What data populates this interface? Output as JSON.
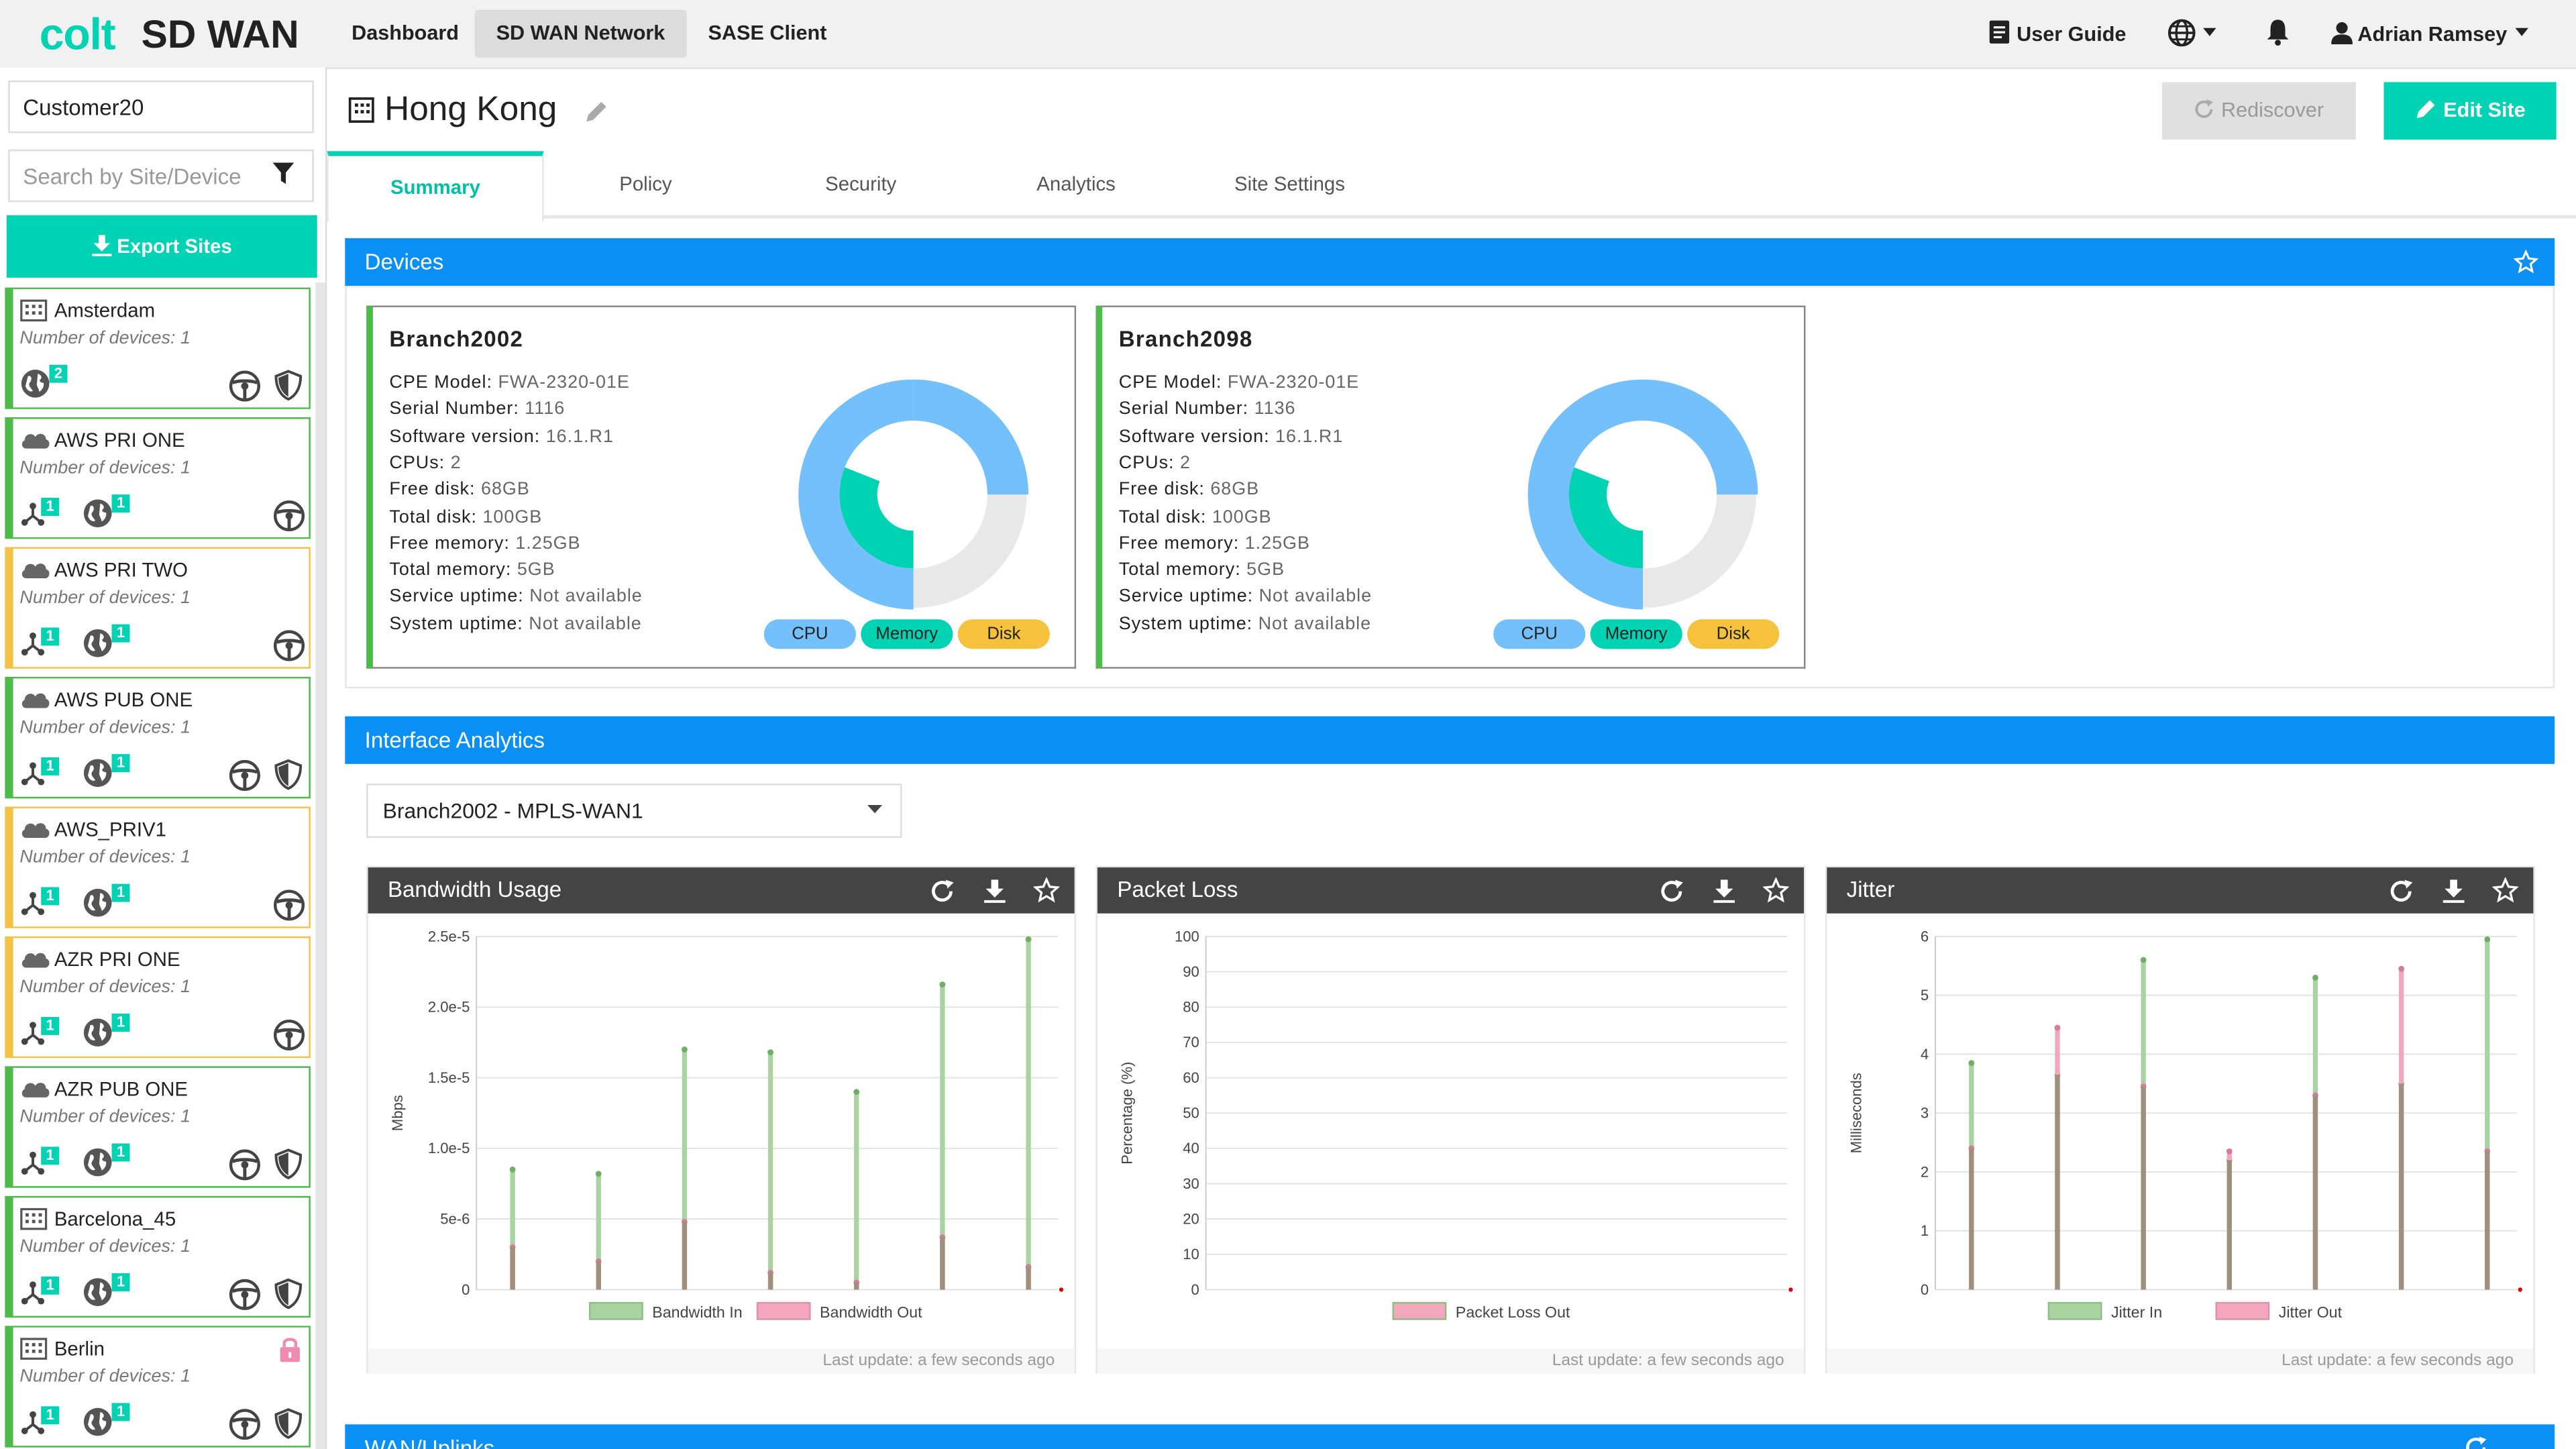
{
  "header": {
    "logo_brand": "colt",
    "logo_product": "SD WAN",
    "nav": [
      "Dashboard",
      "SD WAN Network",
      "SASE Client"
    ],
    "user_guide": "User Guide",
    "user_name": "Adrian Ramsey"
  },
  "sidebar": {
    "customer": "Customer20",
    "search_placeholder": "Search by Site/Device",
    "export_label": "Export Sites",
    "sites": [
      {
        "name": "Amsterdam",
        "devices": "Number of devices: 1",
        "type": "building",
        "status": "green",
        "badge": "2"
      },
      {
        "name": "AWS PRI ONE",
        "devices": "Number of devices: 1",
        "type": "cloud",
        "status": "green",
        "badge": "1"
      },
      {
        "name": "AWS PRI TWO",
        "devices": "Number of devices: 1",
        "type": "cloud",
        "status": "yellow",
        "badge": "1"
      },
      {
        "name": "AWS PUB ONE",
        "devices": "Number of devices: 1",
        "type": "cloud",
        "status": "green",
        "badge": "1"
      },
      {
        "name": "AWS_PRIV1",
        "devices": "Number of devices: 1",
        "type": "cloud",
        "status": "yellow",
        "badge": "1"
      },
      {
        "name": "AZR PRI ONE",
        "devices": "Number of devices: 1",
        "type": "cloud",
        "status": "yellow",
        "badge": "1"
      },
      {
        "name": "AZR PUB ONE",
        "devices": "Number of devices: 1",
        "type": "cloud",
        "status": "green",
        "badge": "1"
      },
      {
        "name": "Barcelona_45",
        "devices": "Number of devices: 1",
        "type": "building",
        "status": "green",
        "badge": "1"
      },
      {
        "name": "Berlin",
        "devices": "Number of devices: 1",
        "type": "building",
        "status": "green",
        "badge": "1"
      }
    ]
  },
  "main": {
    "site_title": "Hong Kong",
    "rediscover_label": "Rediscover",
    "edit_label": "Edit Site",
    "tabs": [
      "Summary",
      "Policy",
      "Security",
      "Analytics",
      "Site Settings"
    ],
    "devices_header": "Devices",
    "devices": [
      {
        "name": "Branch2002",
        "cpe_model": "FWA-2320-01E",
        "serial": "1116",
        "software": "16.1.R1",
        "cpus": "2",
        "free_disk": "68GB",
        "total_disk": "100GB",
        "free_memory": "1.25GB",
        "total_memory": "5GB",
        "service_uptime": "Not available",
        "system_uptime": "Not available"
      },
      {
        "name": "Branch2098",
        "cpe_model": "FWA-2320-01E",
        "serial": "1136",
        "software": "16.1.R1",
        "cpus": "2",
        "free_disk": "68GB",
        "total_disk": "100GB",
        "free_memory": "1.25GB",
        "total_memory": "5GB",
        "service_uptime": "Not available",
        "system_uptime": "Not available"
      }
    ],
    "device_labels": {
      "cpe_model": "CPE Model:",
      "serial": "Serial Number:",
      "software": "Software version:",
      "cpus": "CPUs:",
      "free_disk": "Free disk:",
      "total_disk": "Total disk:",
      "free_memory": "Free memory:",
      "total_memory": "Total memory:",
      "service_uptime": "Service uptime:",
      "system_uptime": "System uptime:"
    },
    "gauge_labels": [
      "CPU",
      "Memory",
      "Disk"
    ],
    "gauge_values": {
      "cpu": 0.5,
      "memory": 0.25,
      "disk": 0.32
    },
    "analytics_header": "Interface Analytics",
    "interface_select": "Branch2002 - MPLS-WAN1",
    "last_update": "Last update: a few seconds ago",
    "wan_header": "WAN/Uplinks"
  },
  "colors": {
    "accent": "#00d2b4",
    "section_blue": "#0a8ff5",
    "online_green": "#4cbb4a",
    "warning_yellow": "#f3c244",
    "cpu_blue": "#74c0fc",
    "disk_yellow": "#f6c23e"
  },
  "chart_data": [
    {
      "type": "line",
      "title": "Bandwidth Usage",
      "ylabel": "Mbps",
      "ylim": [
        0,
        2.5e-05
      ],
      "yticks": [
        "0",
        "5e-6",
        "1.0e-5",
        "1.5e-5",
        "2.0e-5",
        "2.5e-5"
      ],
      "series": [
        {
          "name": "Bandwidth In",
          "color": "#a9d3a1",
          "values": [
            8.5e-06,
            8.2e-06,
            1.7e-05,
            1.68e-05,
            1.4e-05,
            2.16e-05,
            2.48e-05
          ]
        },
        {
          "name": "Bandwidth Out",
          "color": "#f2a7bd",
          "values": [
            3e-06,
            2e-06,
            4.8e-06,
            1.2e-06,
            5e-07,
            3.7e-06,
            1.6e-06
          ]
        }
      ]
    },
    {
      "type": "line",
      "title": "Packet Loss",
      "ylabel": "Percentage (%)",
      "ylim": [
        0,
        100
      ],
      "yticks": [
        "0",
        "10",
        "20",
        "30",
        "40",
        "50",
        "60",
        "70",
        "80",
        "90",
        "100"
      ],
      "series": [
        {
          "name": "Packet Loss Out",
          "color": "#f2a7bd",
          "values": []
        }
      ]
    },
    {
      "type": "line",
      "title": "Jitter",
      "ylabel": "Milliseconds",
      "ylim": [
        0,
        6
      ],
      "yticks": [
        "0",
        "1",
        "2",
        "3",
        "4",
        "5",
        "6"
      ],
      "series": [
        {
          "name": "Jitter In",
          "color": "#a9d3a1",
          "values": [
            3.85,
            3.65,
            5.6,
            2.2,
            5.3,
            3.5,
            5.95
          ]
        },
        {
          "name": "Jitter Out",
          "color": "#f2a7bd",
          "values": [
            2.4,
            4.45,
            3.45,
            2.35,
            3.3,
            5.45,
            2.35
          ]
        }
      ]
    }
  ]
}
